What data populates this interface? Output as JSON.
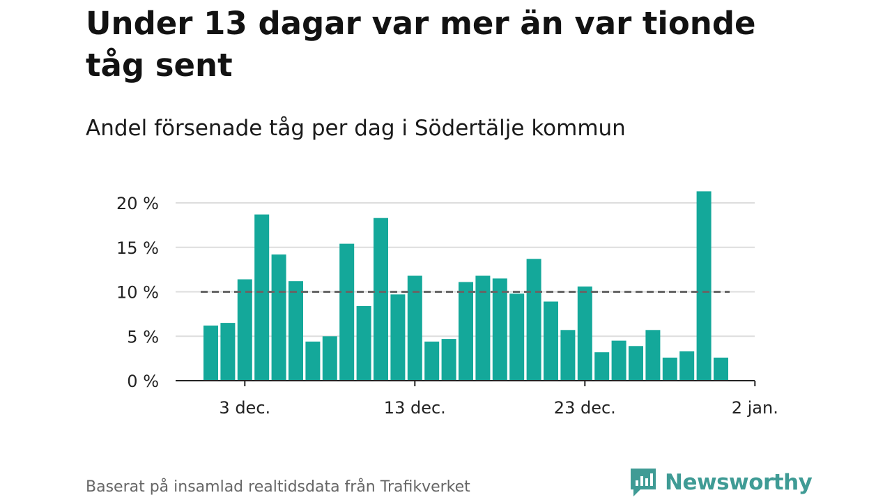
{
  "title": "Under 13 dagar var mer än var tionde tåg sent",
  "subtitle": "Andel försenade tåg per dag i Södertälje kommun",
  "footer": "Baserat på insamlad realtidsdata från Trafikverket",
  "brand": {
    "name": "Newsworthy",
    "icon": "newsworthy-logo-icon",
    "color": "#3f9b95"
  },
  "chart_data": {
    "type": "bar",
    "bar_color": "#14a89a",
    "reference_line": {
      "value": 10,
      "style": "dashed",
      "color": "#666666"
    },
    "x_dates": [
      "2020-12-01",
      "2020-12-02",
      "2020-12-03",
      "2020-12-04",
      "2020-12-05",
      "2020-12-06",
      "2020-12-07",
      "2020-12-08",
      "2020-12-09",
      "2020-12-10",
      "2020-12-11",
      "2020-12-12",
      "2020-12-13",
      "2020-12-14",
      "2020-12-15",
      "2020-12-16",
      "2020-12-17",
      "2020-12-18",
      "2020-12-19",
      "2020-12-20",
      "2020-12-21",
      "2020-12-22",
      "2020-12-23",
      "2020-12-24",
      "2020-12-25",
      "2020-12-26",
      "2020-12-27",
      "2020-12-28",
      "2020-12-29",
      "2020-12-30",
      "2020-12-31"
    ],
    "values": [
      6.2,
      6.5,
      11.4,
      18.7,
      14.2,
      11.2,
      4.4,
      5.0,
      15.4,
      8.4,
      18.3,
      9.7,
      11.8,
      4.4,
      4.7,
      11.1,
      11.8,
      11.5,
      9.8,
      13.7,
      8.9,
      5.7,
      10.6,
      3.2,
      4.5,
      3.9,
      5.7,
      2.6,
      3.3,
      21.3,
      2.6
    ],
    "yticks": [
      "0 %",
      "5 %",
      "10 %",
      "15 %",
      "20 %"
    ],
    "ytick_values": [
      0,
      5,
      10,
      15,
      20
    ],
    "ylim": [
      0,
      22
    ],
    "xticks": [
      "3 dec.",
      "13 dec.",
      "23 dec.",
      "2 jan."
    ],
    "xtick_dates": [
      "2020-12-03",
      "2020-12-13",
      "2020-12-23",
      "2021-01-02"
    ],
    "grid": true
  }
}
